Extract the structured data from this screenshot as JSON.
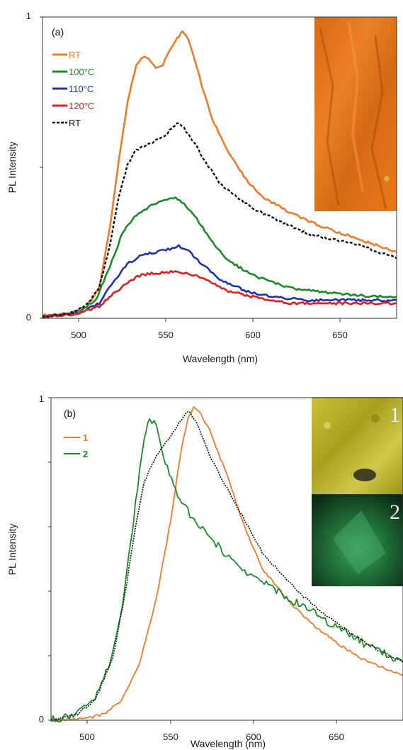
{
  "chart_data": [
    {
      "type": "line",
      "panel_label": "(a)",
      "xlabel": "Wavelength (nm)",
      "ylabel": "PL Intensity",
      "xlim": [
        480,
        680
      ],
      "ylim": [
        0,
        1
      ],
      "x_ticks": [
        "500",
        "550",
        "600",
        "650"
      ],
      "y_ticks": [
        "0",
        "1"
      ],
      "legend_position": "top-left",
      "inset": {
        "colors": [
          "#e36a10",
          "#d9711a",
          "#c85a0c",
          "#f0862a"
        ],
        "dark": "#a04508"
      },
      "series": [
        {
          "name": "RT",
          "color": "#f07a28",
          "dash": "solid",
          "points": [
            [
              480,
              0.01
            ],
            [
              495,
              0.015
            ],
            [
              505,
              0.04
            ],
            [
              512,
              0.1
            ],
            [
              518,
              0.3
            ],
            [
              523,
              0.52
            ],
            [
              528,
              0.72
            ],
            [
              533,
              0.84
            ],
            [
              537,
              0.87
            ],
            [
              540,
              0.86
            ],
            [
              544,
              0.83
            ],
            [
              548,
              0.84
            ],
            [
              552,
              0.89
            ],
            [
              556,
              0.93
            ],
            [
              559,
              0.95
            ],
            [
              562,
              0.93
            ],
            [
              566,
              0.86
            ],
            [
              570,
              0.77
            ],
            [
              576,
              0.66
            ],
            [
              585,
              0.55
            ],
            [
              595,
              0.46
            ],
            [
              605,
              0.4
            ],
            [
              620,
              0.35
            ],
            [
              635,
              0.31
            ],
            [
              650,
              0.28
            ],
            [
              665,
              0.25
            ],
            [
              680,
              0.22
            ]
          ]
        },
        {
          "name": "100°C",
          "color": "#1c8a2c",
          "dash": "solid",
          "points": [
            [
              480,
              0.005
            ],
            [
              500,
              0.02
            ],
            [
              510,
              0.06
            ],
            [
              518,
              0.17
            ],
            [
              525,
              0.28
            ],
            [
              532,
              0.34
            ],
            [
              540,
              0.37
            ],
            [
              548,
              0.39
            ],
            [
              555,
              0.4
            ],
            [
              560,
              0.38
            ],
            [
              566,
              0.34
            ],
            [
              575,
              0.26
            ],
            [
              585,
              0.19
            ],
            [
              600,
              0.14
            ],
            [
              620,
              0.1
            ],
            [
              640,
              0.085
            ],
            [
              660,
              0.075
            ],
            [
              680,
              0.07
            ]
          ]
        },
        {
          "name": "110°C",
          "color": "#2233aa",
          "dash": "solid",
          "points": [
            [
              480,
              0.005
            ],
            [
              500,
              0.015
            ],
            [
              512,
              0.05
            ],
            [
              520,
              0.12
            ],
            [
              528,
              0.18
            ],
            [
              536,
              0.21
            ],
            [
              545,
              0.22
            ],
            [
              552,
              0.23
            ],
            [
              557,
              0.24
            ],
            [
              563,
              0.22
            ],
            [
              570,
              0.18
            ],
            [
              580,
              0.13
            ],
            [
              595,
              0.09
            ],
            [
              610,
              0.07
            ],
            [
              630,
              0.06
            ],
            [
              650,
              0.06
            ],
            [
              680,
              0.06
            ]
          ]
        },
        {
          "name": "120°C",
          "color": "#dd1f1f",
          "dash": "solid",
          "points": [
            [
              480,
              0.005
            ],
            [
              500,
              0.015
            ],
            [
              512,
              0.04
            ],
            [
              520,
              0.08
            ],
            [
              528,
              0.12
            ],
            [
              536,
              0.145
            ],
            [
              545,
              0.15
            ],
            [
              555,
              0.155
            ],
            [
              565,
              0.145
            ],
            [
              575,
              0.12
            ],
            [
              585,
              0.09
            ],
            [
              600,
              0.07
            ],
            [
              620,
              0.05
            ],
            [
              640,
              0.05
            ],
            [
              660,
              0.05
            ],
            [
              680,
              0.05
            ]
          ]
        },
        {
          "name": "RT",
          "color": "#111111",
          "dash": "dashed",
          "points": [
            [
              480,
              0.005
            ],
            [
              495,
              0.015
            ],
            [
              505,
              0.045
            ],
            [
              512,
              0.1
            ],
            [
              518,
              0.24
            ],
            [
              523,
              0.4
            ],
            [
              528,
              0.51
            ],
            [
              533,
              0.56
            ],
            [
              540,
              0.58
            ],
            [
              548,
              0.6
            ],
            [
              553,
              0.63
            ],
            [
              556,
              0.65
            ],
            [
              560,
              0.63
            ],
            [
              566,
              0.58
            ],
            [
              572,
              0.52
            ],
            [
              580,
              0.45
            ],
            [
              590,
              0.4
            ],
            [
              600,
              0.36
            ],
            [
              615,
              0.32
            ],
            [
              630,
              0.28
            ],
            [
              645,
              0.26
            ],
            [
              660,
              0.24
            ],
            [
              680,
              0.2
            ]
          ]
        }
      ]
    },
    {
      "type": "line",
      "panel_label": "(b)",
      "xlabel": "Wavelength (nm)",
      "ylabel": "PL Intensity",
      "xlim": [
        480,
        680
      ],
      "ylim": [
        0,
        1
      ],
      "x_ticks": [
        "500",
        "550",
        "600",
        "650"
      ],
      "y_ticks": [
        "0",
        "1"
      ],
      "legend_position": "top-left",
      "inset": {
        "labels": [
          "1",
          "2"
        ],
        "colors_top": [
          "#b8b022",
          "#c6c032",
          "#a8a21a",
          "#d0c846"
        ],
        "colors_bottom": [
          "#1a5a2e",
          "#2a8a4a",
          "#103d1f",
          "#3ea060"
        ]
      },
      "series": [
        {
          "name": "1",
          "color": "#f07a28",
          "dash": "solid",
          "points": [
            [
              480,
              0.0
            ],
            [
              500,
              0.005
            ],
            [
              510,
              0.02
            ],
            [
              520,
              0.06
            ],
            [
              530,
              0.17
            ],
            [
              540,
              0.38
            ],
            [
              548,
              0.62
            ],
            [
              554,
              0.84
            ],
            [
              558,
              0.94
            ],
            [
              561,
              0.97
            ],
            [
              565,
              0.95
            ],
            [
              570,
              0.9
            ],
            [
              580,
              0.76
            ],
            [
              590,
              0.6
            ],
            [
              600,
              0.47
            ],
            [
              615,
              0.37
            ],
            [
              630,
              0.29
            ],
            [
              645,
              0.23
            ],
            [
              660,
              0.18
            ],
            [
              680,
              0.14
            ]
          ]
        },
        {
          "name": "2",
          "color": "#1c8a2c",
          "dash": "solid",
          "points": [
            [
              480,
              0.0
            ],
            [
              495,
              0.02
            ],
            [
              505,
              0.07
            ],
            [
              515,
              0.2
            ],
            [
              522,
              0.41
            ],
            [
              528,
              0.67
            ],
            [
              533,
              0.88
            ],
            [
              536,
              0.94
            ],
            [
              540,
              0.91
            ],
            [
              545,
              0.8
            ],
            [
              552,
              0.7
            ],
            [
              560,
              0.63
            ],
            [
              570,
              0.57
            ],
            [
              580,
              0.51
            ],
            [
              590,
              0.46
            ],
            [
              600,
              0.43
            ],
            [
              615,
              0.38
            ],
            [
              630,
              0.33
            ],
            [
              645,
              0.28
            ],
            [
              660,
              0.23
            ],
            [
              680,
              0.18
            ]
          ]
        },
        {
          "name": "",
          "color": "#111111",
          "dash": "dotted",
          "points": [
            [
              480,
              0.0
            ],
            [
              495,
              0.02
            ],
            [
              505,
              0.06
            ],
            [
              515,
              0.19
            ],
            [
              522,
              0.39
            ],
            [
              528,
              0.6
            ],
            [
              533,
              0.74
            ],
            [
              540,
              0.82
            ],
            [
              548,
              0.88
            ],
            [
              555,
              0.94
            ],
            [
              558,
              0.96
            ],
            [
              563,
              0.92
            ],
            [
              570,
              0.82
            ],
            [
              580,
              0.72
            ],
            [
              590,
              0.62
            ],
            [
              600,
              0.52
            ],
            [
              610,
              0.46
            ],
            [
              620,
              0.4
            ],
            [
              635,
              0.33
            ],
            [
              650,
              0.27
            ],
            [
              665,
              0.22
            ],
            [
              680,
              0.18
            ]
          ]
        }
      ]
    }
  ]
}
